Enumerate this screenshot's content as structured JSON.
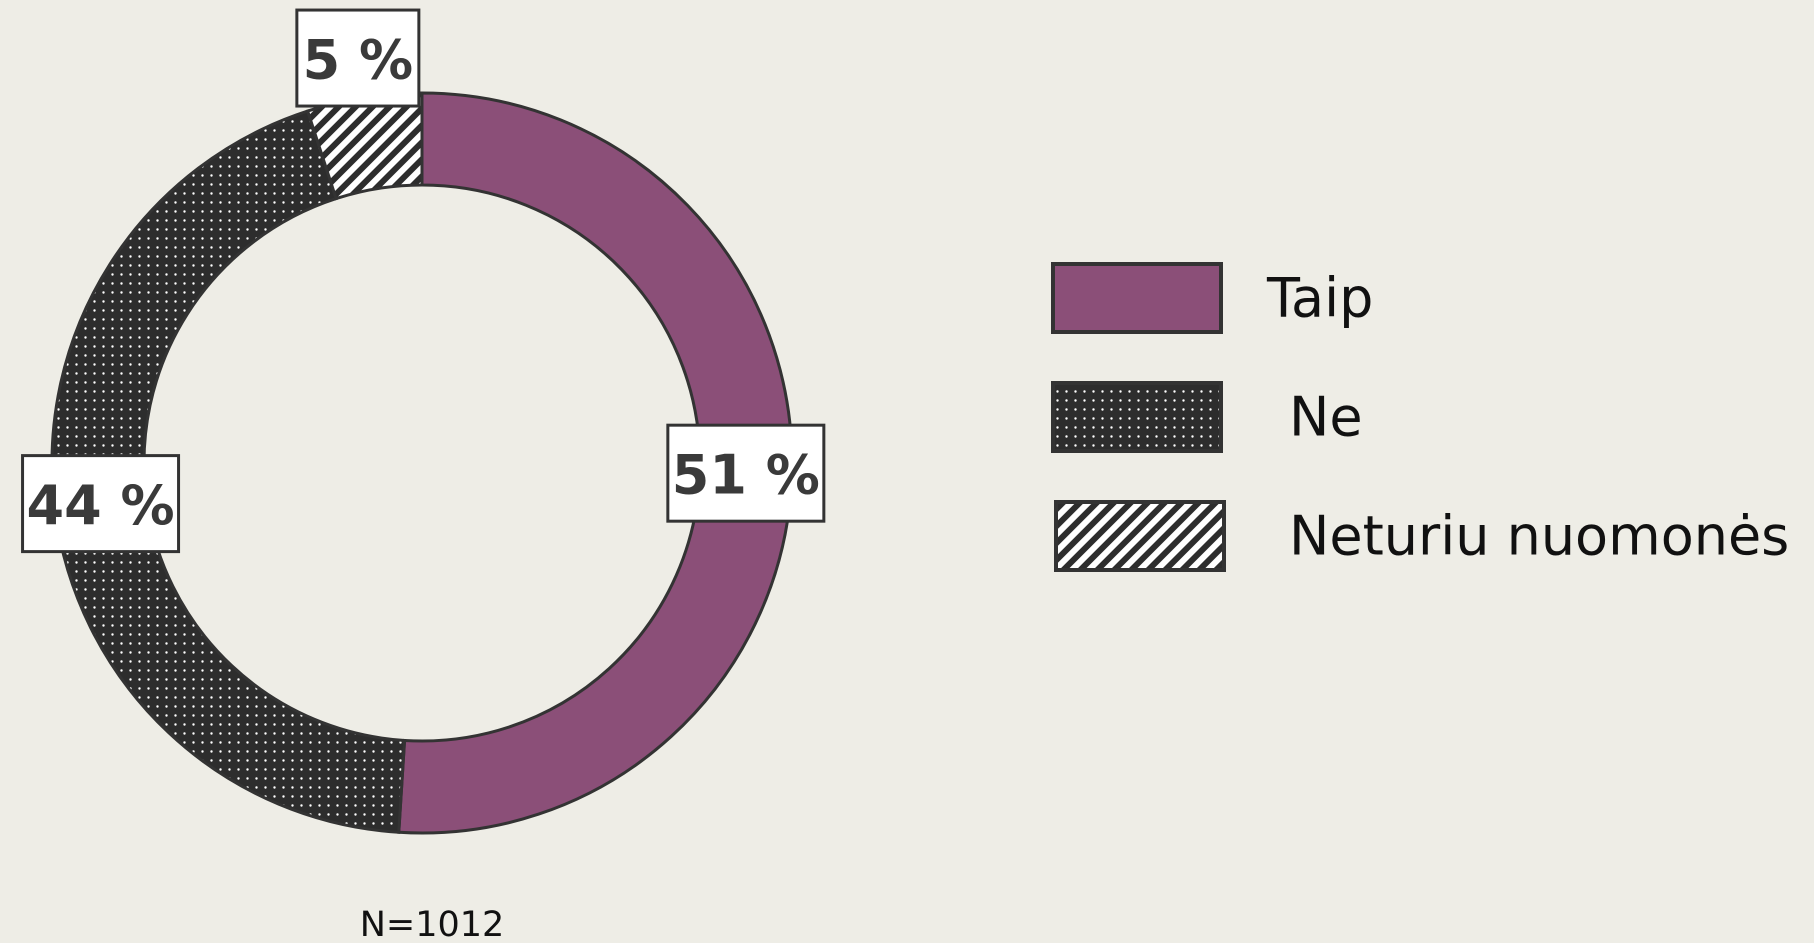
{
  "chart_data": {
    "type": "donut",
    "categories": [
      "Taip",
      "Ne",
      "Neturiu nuomonės"
    ],
    "values": [
      51,
      44,
      5
    ],
    "value_labels": [
      "51 %",
      "44 %",
      "5 %"
    ],
    "colors": [
      "#8b4f78",
      "#2d2d2d",
      "#2d2d2d"
    ],
    "fills": [
      "solid",
      "dots",
      "hatch"
    ],
    "note": "N=1012",
    "legend": "right"
  }
}
